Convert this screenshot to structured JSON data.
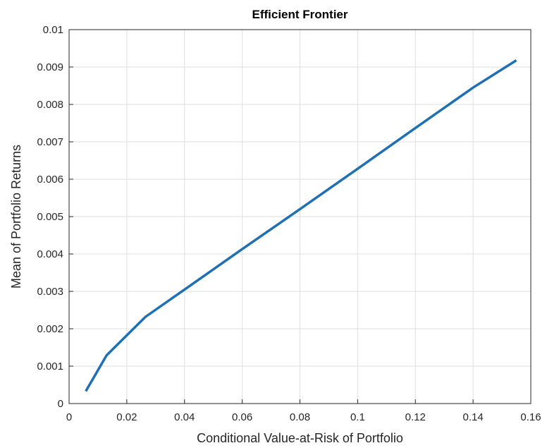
{
  "chart_data": {
    "type": "line",
    "title": "Efficient Frontier",
    "xlabel": "Conditional Value-at-Risk of Portfolio",
    "ylabel": "Mean of Portfolio Returns",
    "xlim": [
      0,
      0.16
    ],
    "ylim": [
      0,
      0.01
    ],
    "x_ticks": [
      "0",
      "0.02",
      "0.04",
      "0.06",
      "0.08",
      "0.1",
      "0.12",
      "0.14",
      "0.16"
    ],
    "y_ticks": [
      "0",
      "0.001",
      "0.002",
      "0.003",
      "0.004",
      "0.005",
      "0.006",
      "0.007",
      "0.008",
      "0.009",
      "0.01"
    ],
    "grid": true,
    "series": [
      {
        "color": "#1f6fb5",
        "x": [
          0.0058,
          0.013,
          0.0265,
          0.04,
          0.06,
          0.08,
          0.1,
          0.12,
          0.14,
          0.155
        ],
        "y": [
          0.00033,
          0.00129,
          0.00232,
          0.00305,
          0.00413,
          0.0052,
          0.00628,
          0.00737,
          0.00845,
          0.00918
        ]
      }
    ]
  }
}
